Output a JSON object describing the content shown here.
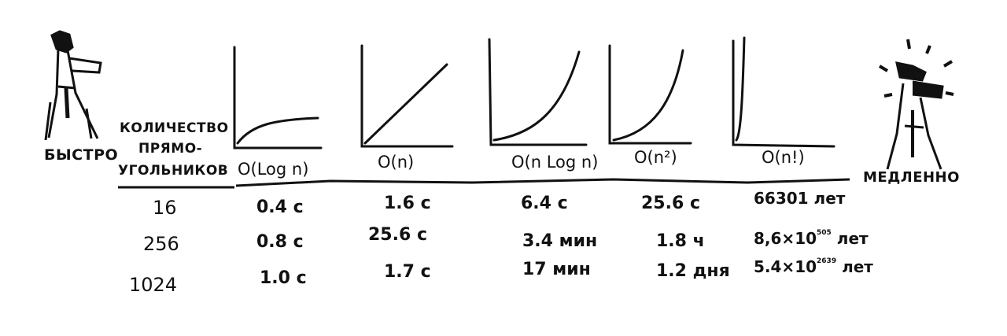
{
  "left_figure": {
    "label": "БЫСТРО"
  },
  "right_figure": {
    "label": "МЕДЛЕННО"
  },
  "header": {
    "rect_count_lines": [
      "КОЛИЧЕСТВО",
      "ПРЯМО-",
      "УГОЛЬНИКОВ"
    ]
  },
  "columns": [
    {
      "notation": "O(Log n)",
      "curve": "log"
    },
    {
      "notation": "O(n)",
      "curve": "linear"
    },
    {
      "notation": "O(n Log n)",
      "curve": "nlogn"
    },
    {
      "notation": "O(n²)",
      "curve": "quadratic"
    },
    {
      "notation": "O(n!)",
      "curve": "factorial"
    }
  ],
  "rows": [
    {
      "count": "16",
      "values": [
        "0.4 с",
        "1.6 с",
        "6.4 с",
        "25.6 с",
        "66301 лет"
      ]
    },
    {
      "count": "256",
      "values": [
        "0.8 с",
        "25.6 с",
        "3.4 мин",
        "1.8 ч",
        "8,6×10",
        "лет"
      ],
      "exp": "505"
    },
    {
      "count": "1024",
      "values": [
        "1.0 с",
        "1.7 с",
        "17 мин",
        "1.2 дня",
        "5.4×10",
        "лет"
      ],
      "exp": "2639"
    }
  ],
  "colors": {
    "ink": "#111111",
    "background": "#ffffff"
  }
}
